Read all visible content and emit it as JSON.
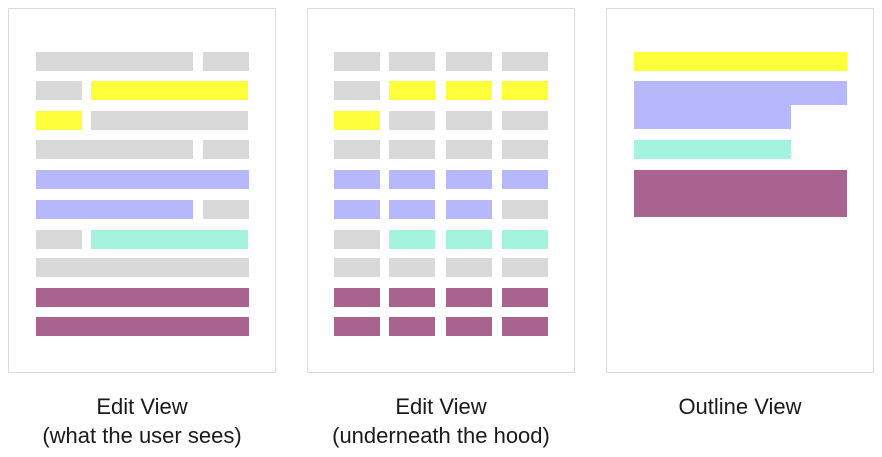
{
  "colors": {
    "gray": "#d9d9d9",
    "yellow": "#ffff3b",
    "blue": "#b7b7fc",
    "teal": "#a3f3df",
    "purple": "#a8638f",
    "panel_border": "#dcdcdc"
  },
  "captions": {
    "edit_view": {
      "title": "Edit View",
      "subtitle": "(what the user sees)"
    },
    "hood_view": {
      "title": "Edit View",
      "subtitle": "(underneath the hood)"
    },
    "outline_view": {
      "title": "Outline View",
      "subtitle": ""
    }
  }
}
